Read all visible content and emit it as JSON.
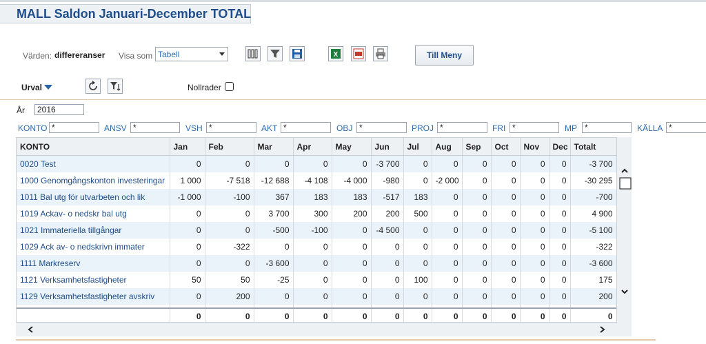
{
  "title": "MALL Saldon Januari-December TOTAL",
  "toolbar": {
    "values_label": "Värden:",
    "values_value": "differeranser",
    "view_label": "Visa som",
    "view_value": "Tabell",
    "menu_button": "Till Meny",
    "icons": [
      "columns-icon",
      "filter-icon",
      "save-icon",
      "excel-icon",
      "pdf-icon",
      "print-icon"
    ]
  },
  "urval": {
    "label": "Urval",
    "zero_rows_label": "Nollrader",
    "zero_rows_checked": false
  },
  "filters": {
    "year_label": "År",
    "year_value": "2016",
    "fields": [
      {
        "label": "KONTO",
        "value": "*"
      },
      {
        "label": "ANSV",
        "value": "*"
      },
      {
        "label": "VSH",
        "value": "*"
      },
      {
        "label": "AKT",
        "value": "*"
      },
      {
        "label": "OBJ",
        "value": "*"
      },
      {
        "label": "PROJ",
        "value": "*"
      },
      {
        "label": "FRI",
        "value": "*"
      },
      {
        "label": "MP",
        "value": "*"
      },
      {
        "label": "KÄLLA",
        "value": "*"
      }
    ]
  },
  "table": {
    "headers": [
      "KONTO",
      "Jan",
      "Feb",
      "Mar",
      "Apr",
      "May",
      "Jun",
      "Jul",
      "Aug",
      "Sep",
      "Oct",
      "Nov",
      "Dec",
      "Totalt"
    ],
    "rows": [
      [
        "0020 Test",
        "0",
        "0",
        "0",
        "0",
        "0",
        "-3 700",
        "0",
        "0",
        "0",
        "0",
        "0",
        "0",
        "-3 700"
      ],
      [
        "1000 Genomgångskonton investeringar",
        "1 000",
        "-7 518",
        "-12 688",
        "-4 108",
        "-4 000",
        "-980",
        "0",
        "-2 000",
        "0",
        "0",
        "0",
        "0",
        "-30 295"
      ],
      [
        "1011 Bal utg för utvarbeten och lik",
        "-1 000",
        "-100",
        "367",
        "183",
        "183",
        "-517",
        "183",
        "0",
        "0",
        "0",
        "0",
        "0",
        "-700"
      ],
      [
        "1019 Ackav- o nedskr bal utg",
        "0",
        "0",
        "3 700",
        "300",
        "200",
        "200",
        "500",
        "0",
        "0",
        "0",
        "0",
        "0",
        "4 900"
      ],
      [
        "1021 Immateriella tillgångar",
        "0",
        "0",
        "-500",
        "-100",
        "0",
        "-4 500",
        "0",
        "0",
        "0",
        "0",
        "0",
        "0",
        "-5 100"
      ],
      [
        "1029 Ack av- o nedskrivn immater",
        "0",
        "-322",
        "0",
        "0",
        "0",
        "0",
        "0",
        "0",
        "0",
        "0",
        "0",
        "0",
        "-322"
      ],
      [
        "1111 Markreserv",
        "0",
        "0",
        "-3 600",
        "0",
        "0",
        "0",
        "0",
        "0",
        "0",
        "0",
        "0",
        "0",
        "-3 600"
      ],
      [
        "1121 Verksamhetsfastigheter",
        "50",
        "50",
        "-25",
        "0",
        "0",
        "0",
        "100",
        "0",
        "0",
        "0",
        "0",
        "0",
        "175"
      ],
      [
        "1129 Verksamhetsfastigheter avskriv",
        "0",
        "200",
        "0",
        "0",
        "0",
        "0",
        "0",
        "0",
        "0",
        "0",
        "0",
        "0",
        "200"
      ]
    ],
    "totals": [
      "",
      "0",
      "0",
      "0",
      "0",
      "0",
      "0",
      "0",
      "0",
      "0",
      "0",
      "0",
      "0",
      "0"
    ]
  }
}
